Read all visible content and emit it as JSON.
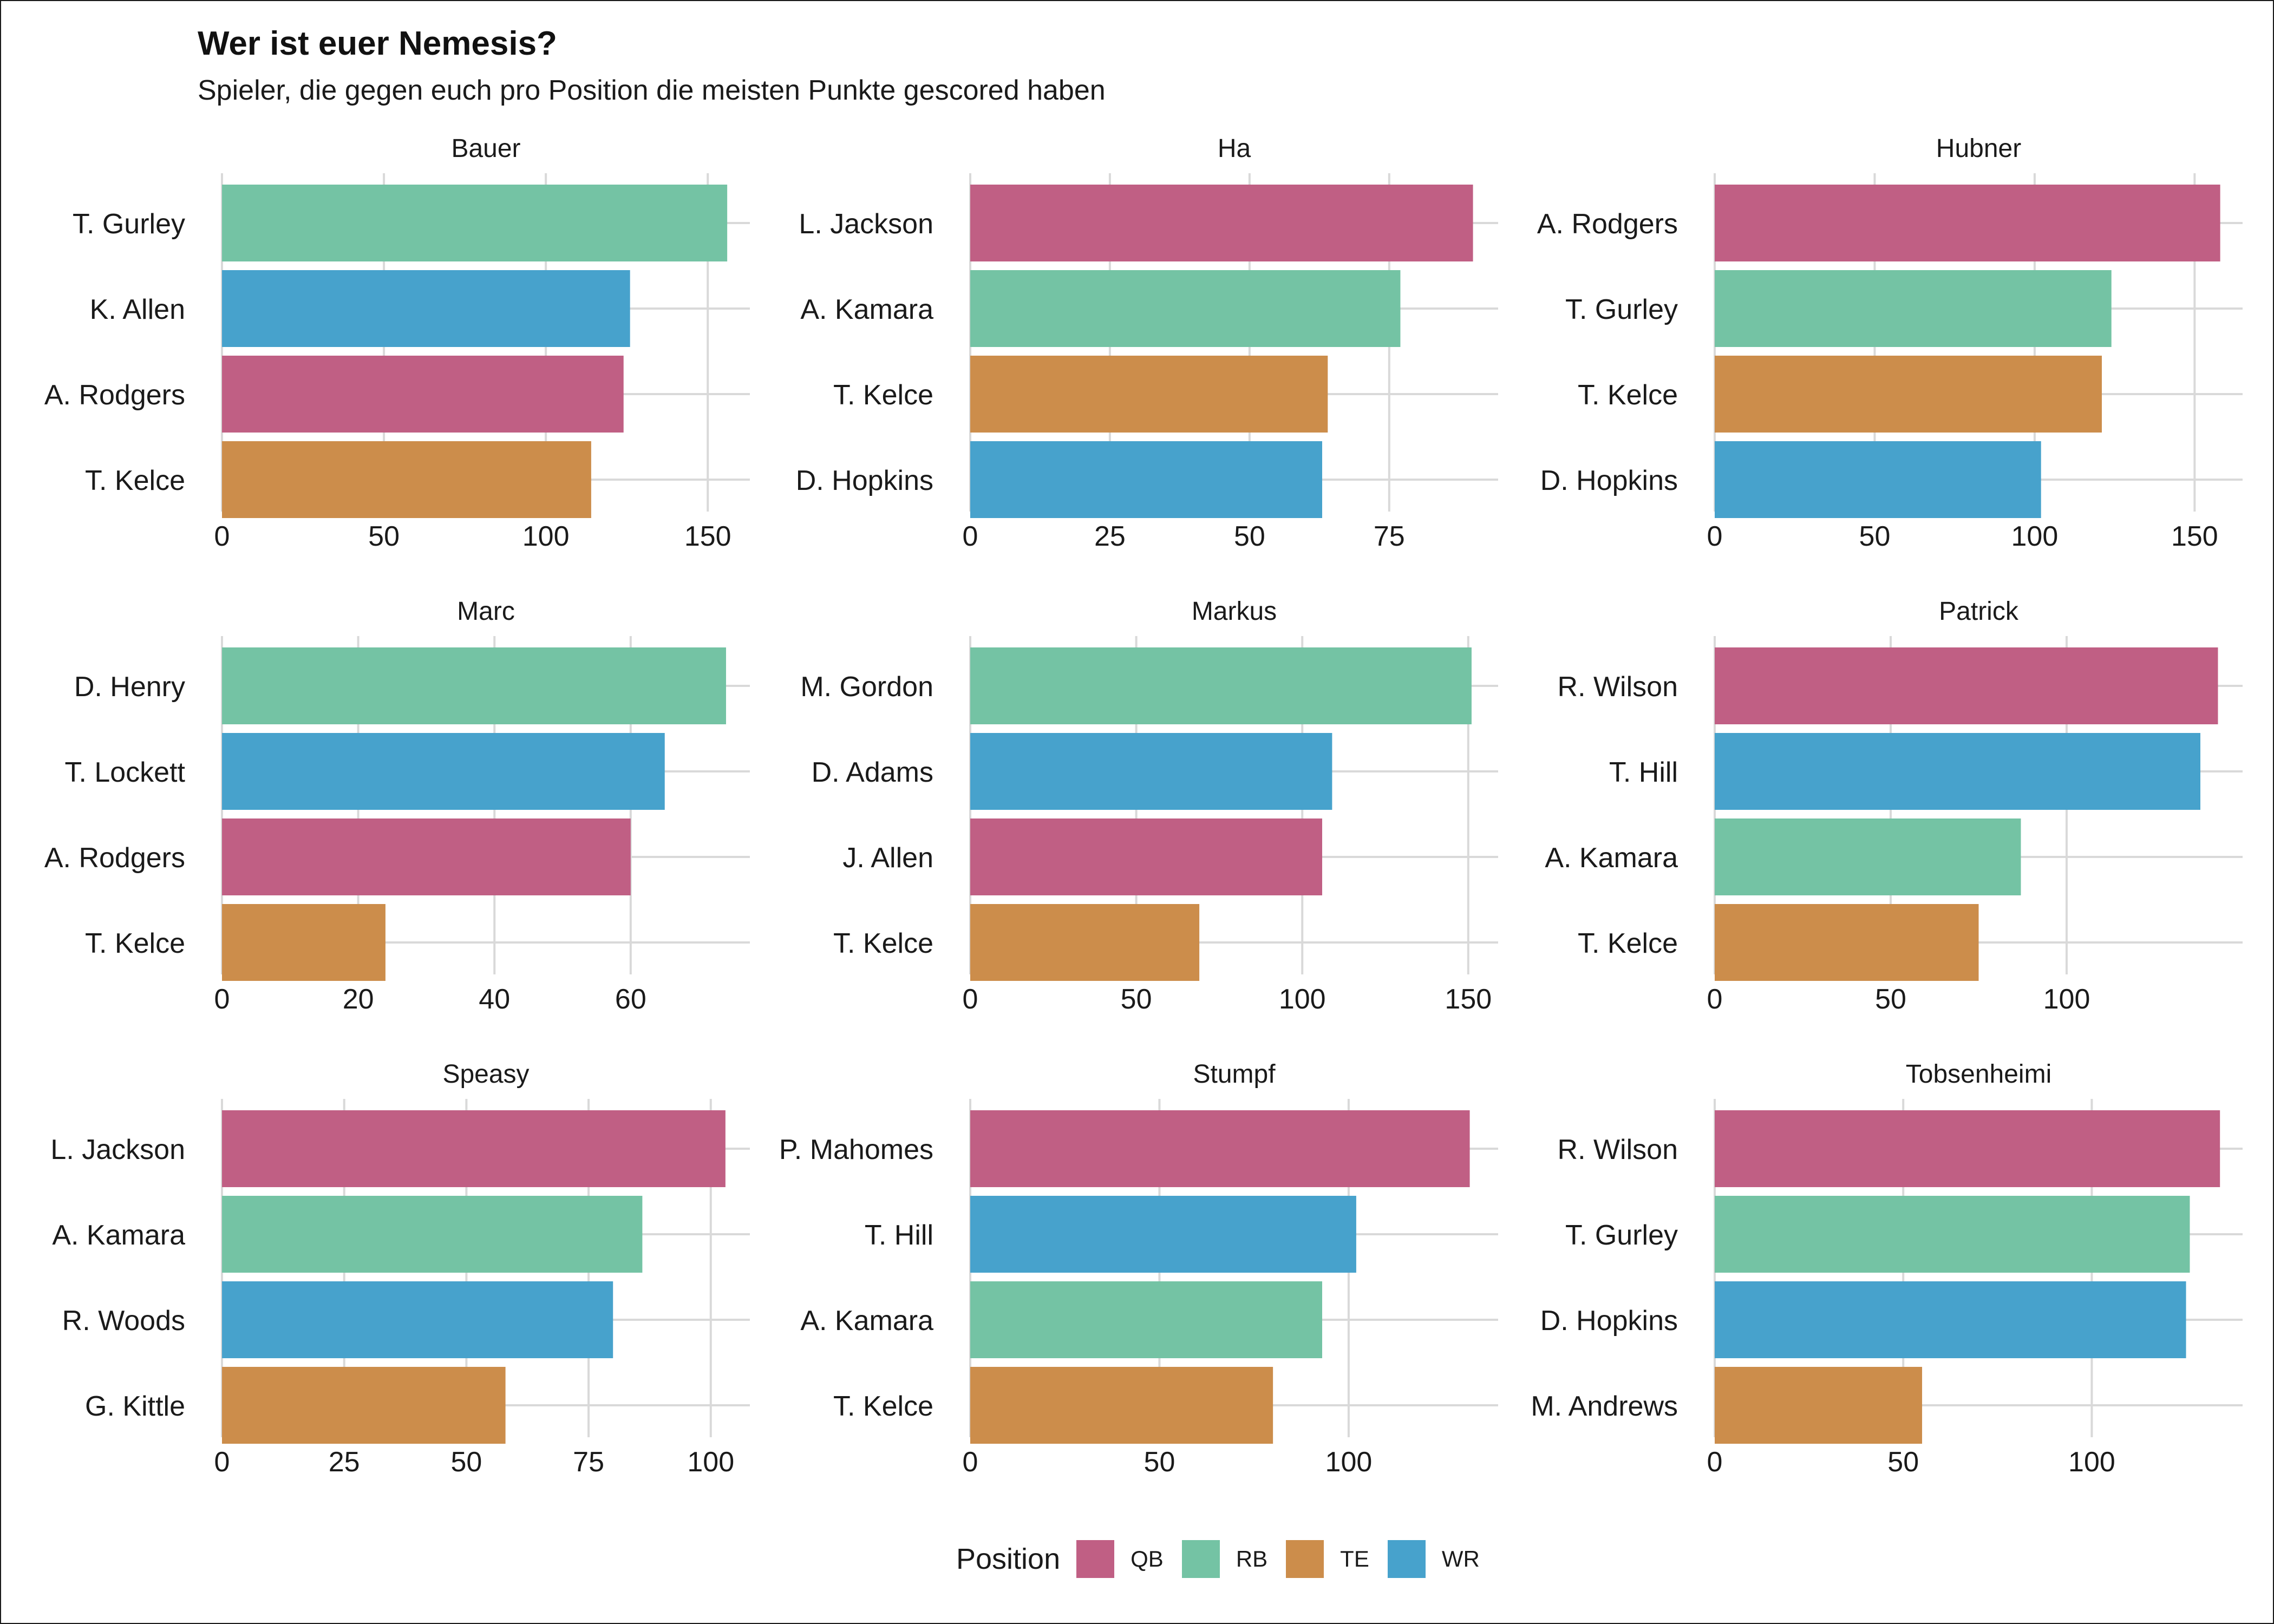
{
  "chart_data": {
    "type": "bar",
    "orientation": "horizontal",
    "title": "Wer ist euer Nemesis?",
    "subtitle": "Spieler, die gegen euch pro Position die meisten Punkte gescored haben",
    "grid": true,
    "legend": {
      "title": "Position",
      "placement": "bottom",
      "entries": [
        {
          "key": "QB",
          "label": "QB",
          "color": "#C05F84"
        },
        {
          "key": "RB",
          "label": "RB",
          "color": "#74C3A4"
        },
        {
          "key": "TE",
          "label": "TE",
          "color": "#CC8D4B"
        },
        {
          "key": "WR",
          "label": "WR",
          "color": "#47A2CC"
        }
      ]
    },
    "panels": [
      {
        "facet": "Bauer",
        "xlim": [
          0,
          163
        ],
        "ticks": [
          0,
          50,
          100,
          150
        ],
        "bars": [
          {
            "player": "T. Gurley",
            "position": "RB",
            "value": 156
          },
          {
            "player": "K. Allen",
            "position": "WR",
            "value": 126
          },
          {
            "player": "A. Rodgers",
            "position": "QB",
            "value": 124
          },
          {
            "player": "T. Kelce",
            "position": "TE",
            "value": 114
          }
        ]
      },
      {
        "facet": "Ha",
        "xlim": [
          0,
          94.5
        ],
        "ticks": [
          0,
          25,
          50,
          75
        ],
        "bars": [
          {
            "player": "L. Jackson",
            "position": "QB",
            "value": 90
          },
          {
            "player": "A. Kamara",
            "position": "RB",
            "value": 77
          },
          {
            "player": "T. Kelce",
            "position": "TE",
            "value": 64
          },
          {
            "player": "D. Hopkins",
            "position": "WR",
            "value": 63
          }
        ]
      },
      {
        "facet": "Hubner",
        "xlim": [
          0,
          165
        ],
        "ticks": [
          0,
          50,
          100,
          150
        ],
        "bars": [
          {
            "player": "A. Rodgers",
            "position": "QB",
            "value": 158
          },
          {
            "player": "T. Gurley",
            "position": "RB",
            "value": 124
          },
          {
            "player": "T. Kelce",
            "position": "TE",
            "value": 121
          },
          {
            "player": "D. Hopkins",
            "position": "WR",
            "value": 102
          }
        ]
      },
      {
        "facet": "Marc",
        "xlim": [
          0,
          77.5
        ],
        "ticks": [
          0,
          20,
          40,
          60
        ],
        "bars": [
          {
            "player": "D. Henry",
            "position": "RB",
            "value": 74
          },
          {
            "player": "T. Lockett",
            "position": "WR",
            "value": 65
          },
          {
            "player": "A. Rodgers",
            "position": "QB",
            "value": 60
          },
          {
            "player": "T. Kelce",
            "position": "TE",
            "value": 24
          }
        ]
      },
      {
        "facet": "Markus",
        "xlim": [
          0,
          159
        ],
        "ticks": [
          0,
          50,
          100,
          150
        ],
        "bars": [
          {
            "player": "M. Gordon",
            "position": "RB",
            "value": 151
          },
          {
            "player": "D. Adams",
            "position": "WR",
            "value": 109
          },
          {
            "player": "J. Allen",
            "position": "QB",
            "value": 106
          },
          {
            "player": "T. Kelce",
            "position": "TE",
            "value": 69
          }
        ]
      },
      {
        "facet": "Patrick",
        "xlim": [
          0,
          150
        ],
        "ticks": [
          0,
          50,
          100
        ],
        "bars": [
          {
            "player": "R. Wilson",
            "position": "QB",
            "value": 143
          },
          {
            "player": "T. Hill",
            "position": "WR",
            "value": 138
          },
          {
            "player": "A. Kamara",
            "position": "RB",
            "value": 87
          },
          {
            "player": "T. Kelce",
            "position": "TE",
            "value": 75
          }
        ]
      },
      {
        "facet": "Speasy",
        "xlim": [
          0,
          108
        ],
        "ticks": [
          0,
          25,
          50,
          75,
          100
        ],
        "bars": [
          {
            "player": "L. Jackson",
            "position": "QB",
            "value": 103
          },
          {
            "player": "A. Kamara",
            "position": "RB",
            "value": 86
          },
          {
            "player": "R. Woods",
            "position": "WR",
            "value": 80
          },
          {
            "player": "G. Kittle",
            "position": "TE",
            "value": 58
          }
        ]
      },
      {
        "facet": "Stumpf",
        "xlim": [
          0,
          139.5
        ],
        "ticks": [
          0,
          50,
          100
        ],
        "bars": [
          {
            "player": "P. Mahomes",
            "position": "QB",
            "value": 132
          },
          {
            "player": "T. Hill",
            "position": "WR",
            "value": 102
          },
          {
            "player": "A. Kamara",
            "position": "RB",
            "value": 93
          },
          {
            "player": "T. Kelce",
            "position": "TE",
            "value": 80
          }
        ]
      },
      {
        "facet": "Tobsenheimi",
        "xlim": [
          0,
          140
        ],
        "ticks": [
          0,
          50,
          100
        ],
        "bars": [
          {
            "player": "R. Wilson",
            "position": "QB",
            "value": 134
          },
          {
            "player": "T. Gurley",
            "position": "RB",
            "value": 126
          },
          {
            "player": "D. Hopkins",
            "position": "WR",
            "value": 125
          },
          {
            "player": "M. Andrews",
            "position": "TE",
            "value": 55
          }
        ]
      }
    ]
  }
}
